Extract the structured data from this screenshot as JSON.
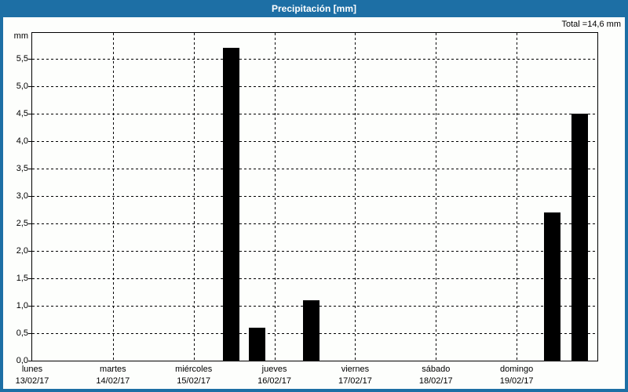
{
  "window": {
    "title_bar": "Precipitación [mm]",
    "total_label": "Total =14,6 mm"
  },
  "chart_data": {
    "type": "bar",
    "title": "Precipitación [mm]",
    "unit_label": "mm",
    "total_mm": 14.6,
    "ylim": [
      0,
      5.97
    ],
    "y_tick_step": 0.5,
    "y_tick_labels": [
      "0,0",
      "0,5",
      "1,0",
      "1,5",
      "2,0",
      "2,5",
      "3,0",
      "3,5",
      "4,0",
      "4,5",
      "5,0",
      "5,5"
    ],
    "grid": "dashed-black-horizontal-and-vertical",
    "legend": "none",
    "x_axis_days": [
      {
        "name": "lunes",
        "date": "13/02/17"
      },
      {
        "name": "martes",
        "date": "14/02/17"
      },
      {
        "name": "miércoles",
        "date": "15/02/17"
      },
      {
        "name": "jueves",
        "date": "16/02/17"
      },
      {
        "name": "viernes",
        "date": "17/02/17"
      },
      {
        "name": "sábado",
        "date": "18/02/17"
      },
      {
        "name": "domingo",
        "date": "19/02/17"
      }
    ],
    "bars": [
      {
        "day": "miércoles",
        "date": "15/02/17",
        "value_mm": 5.7,
        "x_frac": 0.337,
        "width_frac": 0.029
      },
      {
        "day": "miércoles",
        "date": "15/02/17",
        "value_mm": 0.6,
        "x_frac": 0.384,
        "width_frac": 0.029
      },
      {
        "day": "jueves",
        "date": "16/02/17",
        "value_mm": 1.1,
        "x_frac": 0.479,
        "width_frac": 0.029
      },
      {
        "day": "domingo",
        "date": "19/02/17",
        "value_mm": 2.7,
        "x_frac": 0.906,
        "width_frac": 0.029
      },
      {
        "day": "domingo",
        "date": "19/02/17",
        "value_mm": 4.5,
        "x_frac": 0.954,
        "width_frac": 0.029
      }
    ],
    "bar_color": "#000000"
  },
  "colors": {
    "accent": "#1d6fa5",
    "background": "#fdfefc",
    "plot_border": "#000000",
    "bar": "#000000",
    "grid": "#000000",
    "title_text": "#ffffff",
    "text": "#000000"
  }
}
